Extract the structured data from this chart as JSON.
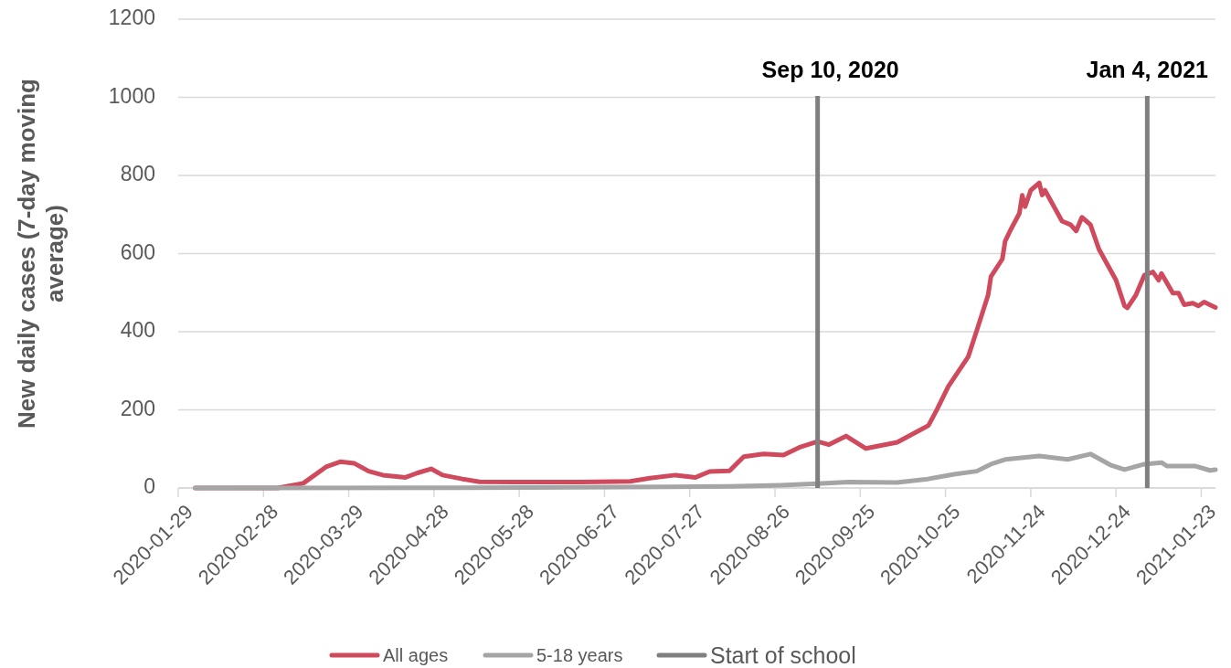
{
  "chart_data": {
    "type": "line",
    "ylabel": "New daily cases (7-day moving average)",
    "xlim": [
      "2020-01-29",
      "2021-01-28"
    ],
    "xticks": [
      "2020-01-29",
      "2020-02-28",
      "2020-03-29",
      "2020-04-28",
      "2020-05-28",
      "2020-06-27",
      "2020-07-27",
      "2020-08-26",
      "2020-09-25",
      "2020-10-25",
      "2020-11-24",
      "2020-12-24",
      "2021-01-23"
    ],
    "ylim": [
      0,
      1200
    ],
    "yticks": [
      0,
      200,
      400,
      600,
      800,
      1000,
      1200
    ],
    "grid": "y",
    "legend": "bottom",
    "line_style": "solid",
    "marker": "none",
    "series": [
      {
        "name": "All ages",
        "color": "#d04a5e",
        "x": [
          "2020-02-04",
          "2020-03-04",
          "2020-03-13",
          "2020-03-21",
          "2020-03-26",
          "2020-03-31",
          "2020-04-05",
          "2020-04-10",
          "2020-04-18",
          "2020-04-22",
          "2020-04-27",
          "2020-05-01",
          "2020-05-08",
          "2020-05-14",
          "2020-05-27",
          "2020-06-08",
          "2020-06-19",
          "2020-07-06",
          "2020-07-13",
          "2020-07-22",
          "2020-07-29",
          "2020-08-03",
          "2020-08-10",
          "2020-08-15",
          "2020-08-22",
          "2020-08-29",
          "2020-09-04",
          "2020-09-10",
          "2020-09-14",
          "2020-09-20",
          "2020-09-27",
          "2020-10-08",
          "2020-10-17",
          "2020-10-19",
          "2020-10-22",
          "2020-10-26",
          "2020-11-02",
          "2020-11-05",
          "2020-11-09",
          "2020-11-10",
          "2020-11-14",
          "2020-11-15",
          "2020-11-17",
          "2020-11-20",
          "2020-11-21",
          "2020-11-22",
          "2020-11-24",
          "2020-11-27",
          "2020-11-28",
          "2020-11-29",
          "2020-12-05",
          "2020-12-08",
          "2020-12-10",
          "2020-12-12",
          "2020-12-15",
          "2020-12-18",
          "2020-12-24",
          "2020-12-27",
          "2020-12-28",
          "2020-12-31",
          "2021-01-03",
          "2021-01-06",
          "2021-01-08",
          "2021-01-09",
          "2021-01-13",
          "2021-01-15",
          "2021-01-17",
          "2021-01-20",
          "2021-01-22",
          "2021-01-24",
          "2021-01-28"
        ],
        "values": [
          0,
          0,
          12,
          54,
          67,
          63,
          43,
          33,
          27,
          38,
          49,
          33,
          23,
          16,
          15,
          15,
          15,
          17,
          25,
          33,
          27,
          42,
          44,
          80,
          87,
          84,
          105,
          119,
          111,
          133,
          101,
          117,
          152,
          160,
          201,
          260,
          336,
          403,
          494,
          541,
          586,
          632,
          662,
          703,
          749,
          720,
          762,
          781,
          750,
          762,
          683,
          674,
          658,
          693,
          674,
          611,
          532,
          466,
          461,
          494,
          545,
          553,
          532,
          549,
          499,
          499,
          469,
          473,
          466,
          476,
          462
        ]
      },
      {
        "name": "5-18 years",
        "color": "#a5a5a5",
        "x": [
          "2020-02-04",
          "2020-06-01",
          "2020-07-20",
          "2020-08-10",
          "2020-08-28",
          "2020-09-10",
          "2020-09-21",
          "2020-10-08",
          "2020-10-18",
          "2020-10-28",
          "2020-11-05",
          "2020-11-10",
          "2020-11-15",
          "2020-11-27",
          "2020-12-07",
          "2020-12-15",
          "2020-12-22",
          "2020-12-27",
          "2021-01-03",
          "2021-01-09",
          "2021-01-11",
          "2021-01-21",
          "2021-01-26",
          "2021-01-28"
        ],
        "values": [
          0,
          1,
          3,
          4,
          7,
          11,
          15,
          14,
          22,
          35,
          43,
          61,
          73,
          82,
          73,
          87,
          59,
          47,
          61,
          65,
          56,
          56,
          45,
          47
        ]
      }
    ],
    "ref_lines": [
      {
        "axis": "x",
        "value": "2020-09-10",
        "label": "Sep 10, 2020",
        "color": "#7f7f7f"
      },
      {
        "axis": "x",
        "value": "2021-01-04",
        "label": "Jan 4, 2021",
        "color": "#7f7f7f"
      }
    ],
    "annotations": [
      "Start of school"
    ]
  }
}
